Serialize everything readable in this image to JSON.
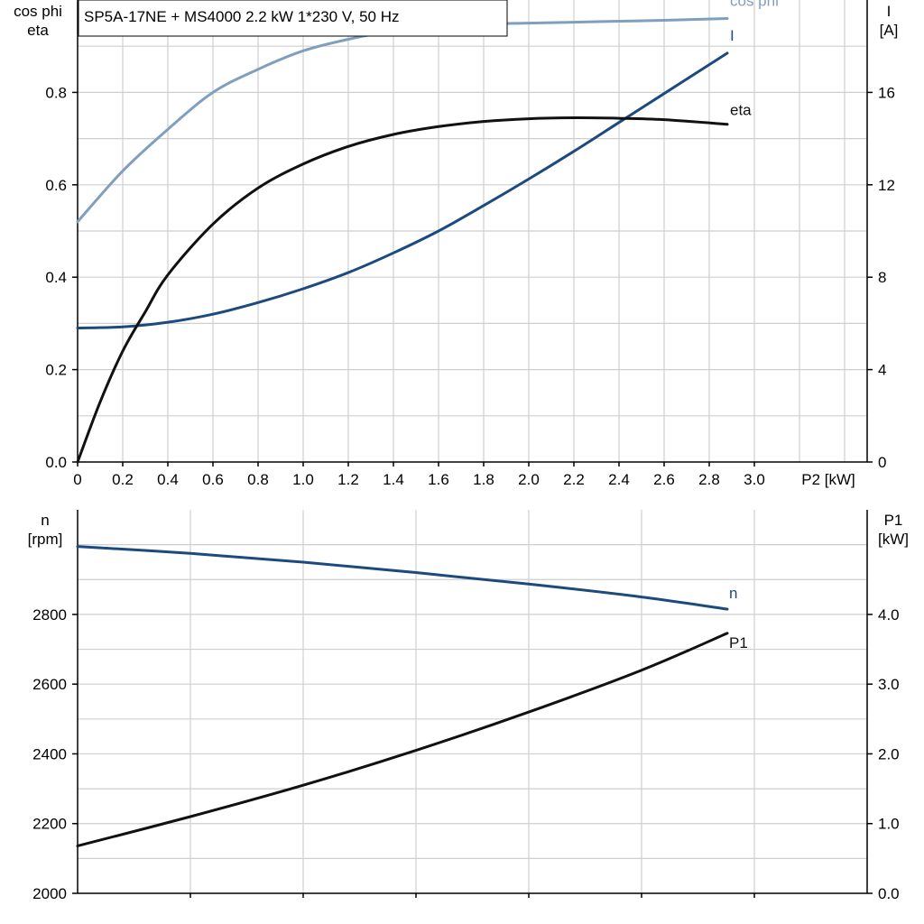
{
  "chart_data": [
    {
      "type": "line",
      "title": "SP5A-17NE + MS4000   2.2 kW   1*230 V, 50 Hz",
      "xlabel": "P2 [kW]",
      "xlim": [
        0,
        3.5
      ],
      "x_ticks": [
        "0",
        "0.2",
        "0.4",
        "0.6",
        "0.8",
        "1.0",
        "1.2",
        "1.4",
        "1.6",
        "1.8",
        "2.0",
        "2.2",
        "2.4",
        "2.6",
        "2.8",
        "3.0"
      ],
      "y_left": {
        "label_lines": [
          "cos phi",
          "eta"
        ],
        "range": [
          0,
          1.0
        ],
        "ticks": [
          "0.0",
          "0.2",
          "0.4",
          "0.6",
          "0.8"
        ]
      },
      "y_right": {
        "label_lines": [
          "I",
          "[A]"
        ],
        "range": [
          0,
          20
        ],
        "ticks": [
          "0",
          "4",
          "8",
          "12",
          "16"
        ]
      },
      "grid": true,
      "series": [
        {
          "name": "cos phi",
          "axis": "left",
          "color": "#7f9fbf",
          "x": [
            0,
            0.2,
            0.4,
            0.6,
            0.8,
            1.0,
            1.2,
            1.4,
            1.6,
            1.8,
            2.0,
            2.2,
            2.4,
            2.6,
            2.88
          ],
          "y": [
            0.52,
            0.63,
            0.72,
            0.8,
            0.85,
            0.89,
            0.915,
            0.933,
            0.943,
            0.948,
            0.95,
            0.952,
            0.954,
            0.956,
            0.96
          ]
        },
        {
          "name": "I",
          "axis": "right",
          "color": "#1c4a7e",
          "x": [
            0,
            0.2,
            0.4,
            0.6,
            0.8,
            1.0,
            1.2,
            1.4,
            1.6,
            1.8,
            2.0,
            2.2,
            2.4,
            2.6,
            2.88
          ],
          "y": [
            5.8,
            5.85,
            6.05,
            6.4,
            6.9,
            7.5,
            8.2,
            9.05,
            10.0,
            11.1,
            12.25,
            13.45,
            14.7,
            15.95,
            17.7
          ]
        },
        {
          "name": "eta",
          "axis": "left",
          "color": "#111111",
          "x": [
            0,
            0.1,
            0.2,
            0.3,
            0.4,
            0.6,
            0.8,
            1.0,
            1.2,
            1.4,
            1.6,
            1.8,
            2.0,
            2.2,
            2.4,
            2.6,
            2.88
          ],
          "y": [
            0.0,
            0.13,
            0.24,
            0.325,
            0.405,
            0.515,
            0.593,
            0.645,
            0.683,
            0.709,
            0.726,
            0.737,
            0.743,
            0.745,
            0.744,
            0.741,
            0.731
          ]
        }
      ]
    },
    {
      "type": "line",
      "xlim": [
        0,
        3.5
      ],
      "y_left": {
        "label_lines": [
          "n",
          "[rpm]"
        ],
        "range": [
          2000,
          3100
        ],
        "ticks": [
          "2000",
          "2200",
          "2400",
          "2600",
          "2800"
        ]
      },
      "y_right": {
        "label_lines": [
          "P1",
          "[kW]"
        ],
        "range": [
          0,
          5.5
        ],
        "ticks": [
          "0.0",
          "1.0",
          "2.0",
          "3.0",
          "4.0"
        ]
      },
      "grid": true,
      "series": [
        {
          "name": "n",
          "axis": "left",
          "color": "#1c4a7e",
          "x": [
            0,
            0.5,
            1.0,
            1.5,
            2.0,
            2.5,
            2.88
          ],
          "y": [
            2995,
            2975,
            2950,
            2920,
            2887,
            2850,
            2815
          ]
        },
        {
          "name": "P1",
          "axis": "right",
          "color": "#111111",
          "x": [
            0,
            0.5,
            1.0,
            1.5,
            2.0,
            2.5,
            2.88
          ],
          "y": [
            0.68,
            1.1,
            1.55,
            2.05,
            2.6,
            3.2,
            3.73
          ]
        }
      ]
    }
  ]
}
